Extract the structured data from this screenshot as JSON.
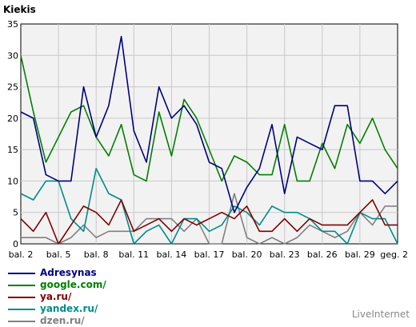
{
  "chart_data": {
    "type": "line",
    "ylabel": "Kiekis",
    "ylim": [
      0,
      35
    ],
    "yticks": [
      0,
      5,
      10,
      15,
      20,
      25,
      30,
      35
    ],
    "x": [
      "bal. 2",
      "bal. 3",
      "bal. 4",
      "bal. 5",
      "bal. 6",
      "bal. 7",
      "bal. 8",
      "bal. 9",
      "bal. 10",
      "bal. 11",
      "bal. 12",
      "bal. 13",
      "bal. 14",
      "bal. 15",
      "bal. 16",
      "bal. 17",
      "bal. 18",
      "bal. 19",
      "bal. 20",
      "bal. 21",
      "bal. 22",
      "bal. 23",
      "bal. 24",
      "bal. 25",
      "bal. 26",
      "bal. 27",
      "bal. 28",
      "bal. 29",
      "bal. 30",
      "geg. 1",
      "geg. 2"
    ],
    "xtick_labels": [
      "bal. 2",
      "bal. 5",
      "bal. 8",
      "bal. 11",
      "bal. 14",
      "bal. 17",
      "bal. 20",
      "bal. 23",
      "bal. 26",
      "bal. 29",
      "geg. 2"
    ],
    "grid": true,
    "legend_position": "bottom-left",
    "series": [
      {
        "name": "Adresynas",
        "color": "#000080",
        "values": [
          21,
          20,
          11,
          10,
          10,
          25,
          17,
          22,
          33,
          18,
          13,
          25,
          20,
          22,
          19,
          13,
          12,
          5,
          9,
          12,
          19,
          8,
          17,
          16,
          15,
          22,
          22,
          10,
          10,
          8,
          10
        ]
      },
      {
        "name": "google.com/",
        "color": "#008000",
        "values": [
          30,
          21,
          13,
          17,
          21,
          22,
          17,
          14,
          19,
          11,
          10,
          21,
          14,
          23,
          20,
          15,
          10,
          14,
          13,
          11,
          11,
          19,
          10,
          10,
          16,
          12,
          19,
          16,
          20,
          15,
          12
        ]
      },
      {
        "name": "ya.ru/",
        "color": "#800000",
        "values": [
          4,
          2,
          5,
          0,
          3,
          6,
          5,
          3,
          7,
          2,
          3,
          4,
          2,
          4,
          3,
          4,
          5,
          4,
          6,
          2,
          2,
          4,
          2,
          4,
          3,
          3,
          3,
          5,
          7,
          3,
          3
        ]
      },
      {
        "name": "yandex.ru/",
        "color": "#008b8b",
        "values": [
          8,
          7,
          10,
          10,
          4,
          2,
          12,
          8,
          7,
          0,
          2,
          3,
          0,
          4,
          4,
          2,
          3,
          6,
          5,
          3,
          6,
          5,
          5,
          4,
          2,
          2,
          0,
          5,
          4,
          4,
          0
        ]
      },
      {
        "name": "dzen.ru/",
        "color": "#808080",
        "values": [
          1,
          1,
          1,
          0,
          1,
          3,
          1,
          2,
          2,
          2,
          4,
          4,
          4,
          2,
          4,
          0,
          0,
          8,
          1,
          0,
          1,
          0,
          1,
          3,
          2,
          1,
          2,
          5,
          3,
          6,
          6
        ]
      }
    ]
  },
  "credit": "LiveInternet"
}
